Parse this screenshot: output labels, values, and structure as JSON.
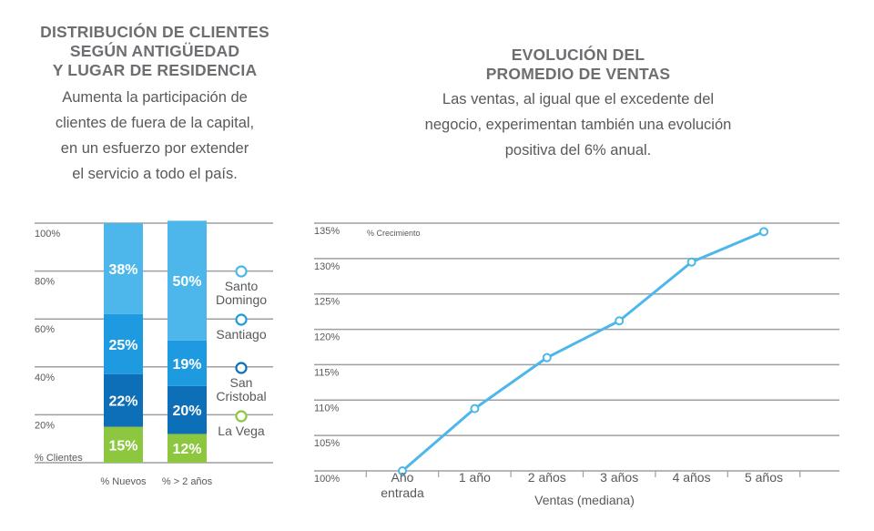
{
  "left_panel": {
    "title_lines": [
      "DISTRIBUCIÓN DE CLIENTES",
      "SEGÚN ANTIGÜEDAD",
      "Y LUGAR DE RESIDENCIA"
    ],
    "description_lines": [
      "Aumenta la participación de",
      "clientes de fuera de la capital,",
      "en un esfuerzo por extender",
      "el servicio a todo el país."
    ]
  },
  "right_panel": {
    "title_lines": [
      "EVOLUCIÓN DEL",
      "PROMEDIO DE VENTAS"
    ],
    "description_lines": [
      "Las ventas, al igual que el excedente del",
      "negocio, experimentan también una evolución",
      "positiva del 6% anual."
    ]
  },
  "chart_data": [
    {
      "type": "bar",
      "stacked": true,
      "categories": [
        "% Nuevos",
        "% > 2 años"
      ],
      "y_axis_title": "% Clientes",
      "y_ticks": [
        "20%",
        "40%",
        "60%",
        "80%",
        "100%"
      ],
      "ylim": [
        0,
        100
      ],
      "grid": true,
      "series": [
        {
          "name": "La Vega",
          "values": [
            15,
            12
          ],
          "labels": [
            "15%",
            "12%"
          ],
          "color": "#8dc63f"
        },
        {
          "name": "San Cristobal",
          "values": [
            22,
            20
          ],
          "labels": [
            "22%",
            "20%"
          ],
          "color": "#0d6fb8"
        },
        {
          "name": "Santiago",
          "values": [
            25,
            19
          ],
          "labels": [
            "25%",
            "19%"
          ],
          "color": "#1e9be0"
        },
        {
          "name": "Santo Domingo",
          "values": [
            38,
            50
          ],
          "labels": [
            "38%",
            "50%"
          ],
          "color": "#4db7ec"
        }
      ],
      "legend_position": "right",
      "legend": [
        {
          "label_lines": [
            "Santo",
            "Domingo"
          ],
          "color": "#4db7ec"
        },
        {
          "label_lines": [
            "Santiago"
          ],
          "color": "#1e9be0"
        },
        {
          "label_lines": [
            "San",
            "Cristobal"
          ],
          "color": "#0d6fb8"
        },
        {
          "label_lines": [
            "La Vega"
          ],
          "color": "#8dc63f"
        }
      ]
    },
    {
      "type": "line",
      "x": [
        "Año entrada",
        "1 año",
        "2 años",
        "3 años",
        "4 años",
        "5 años"
      ],
      "x_label_lines": [
        [
          "Año",
          "entrada"
        ],
        [
          "1 año"
        ],
        [
          "2 años"
        ],
        [
          "3 años"
        ],
        [
          "4 años"
        ],
        [
          "5 años"
        ]
      ],
      "xlabel": "Ventas (mediana)",
      "y_axis_title": "% Crecimiento",
      "series": [
        {
          "values": [
            100,
            108.8,
            116,
            121.2,
            129.5,
            133.8
          ]
        }
      ],
      "y_ticks": [
        "100%",
        "105%",
        "110%",
        "115%",
        "120%",
        "125%",
        "130%",
        "135%"
      ],
      "ylim": [
        100,
        135
      ],
      "grid": true,
      "color": "#4db7ec"
    }
  ]
}
